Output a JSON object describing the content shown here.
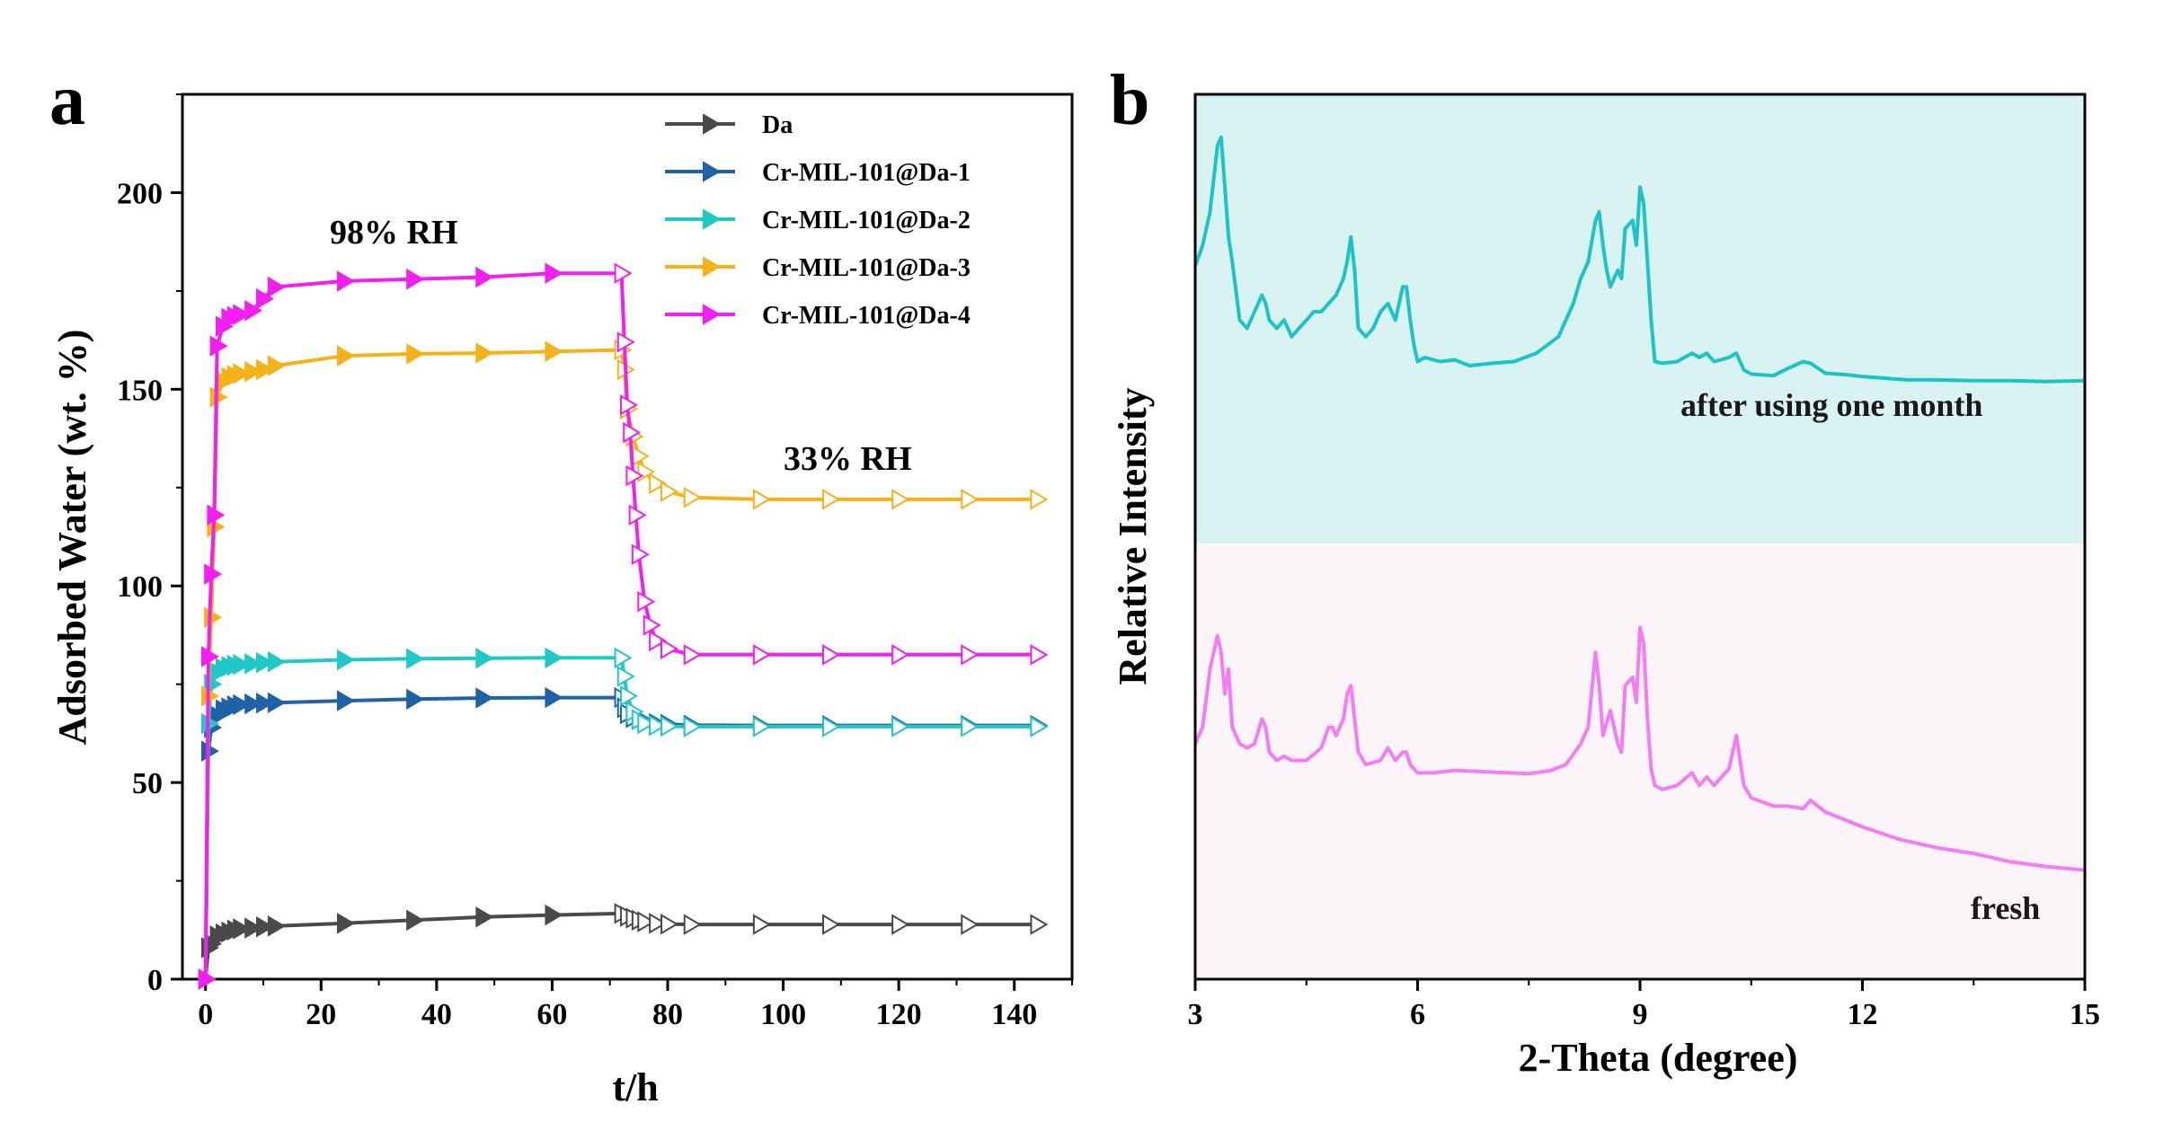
{
  "colors": {
    "Da": "#4a4a4a",
    "Cr-MIL-101@Da-1": "#1f63a6",
    "Cr-MIL-101@Da-2": "#20c8c8",
    "Cr-MIL-101@Da-3": "#f5b319",
    "Cr-MIL-101@Da-4": "#f21ef2",
    "trace_after": "#1ec3c3",
    "trace_fresh": "#f57cf5",
    "bg_after": "#d9f2f2",
    "bg_fresh": "#fbf4f8"
  },
  "chart_data": [
    {
      "panel": "a",
      "type": "line",
      "xlabel": "t/h",
      "ylabel": "Adsorbed Water (wt. %)",
      "xlim": [
        -4,
        150
      ],
      "ylim": [
        0,
        225
      ],
      "xticks": [
        "0",
        "20",
        "40",
        "60",
        "80",
        "100",
        "120",
        "140"
      ],
      "yticks": [
        "0",
        "50",
        "100",
        "150",
        "200"
      ],
      "annotations": [
        "98% RH",
        "33% RH"
      ],
      "legend_position": "top-right",
      "series": [
        {
          "name": "Da",
          "x": [
            0,
            0.5,
            1,
            2,
            3,
            4,
            5,
            6,
            8,
            10,
            12,
            24,
            36,
            48,
            60,
            72,
            73,
            74,
            75,
            76,
            78,
            80,
            84,
            96,
            108,
            120,
            132,
            144
          ],
          "values": [
            0,
            8,
            9,
            11,
            11.5,
            12,
            12.5,
            12.8,
            13,
            13.3,
            13.5,
            14.2,
            15,
            15.8,
            16.3,
            16.7,
            16,
            15.5,
            15,
            14.6,
            14.2,
            14,
            13.9,
            13.9,
            13.9,
            13.9,
            13.9,
            13.9
          ]
        },
        {
          "name": "Cr-MIL-101@Da-1",
          "x": [
            0,
            0.5,
            1,
            2,
            3,
            4,
            5,
            6,
            8,
            10,
            12,
            24,
            36,
            48,
            60,
            72,
            72.5,
            73,
            74,
            75,
            76,
            78,
            80,
            84,
            96,
            108,
            120,
            132,
            144
          ],
          "values": [
            0,
            58,
            64,
            67,
            68.5,
            69,
            69.5,
            69.8,
            70,
            70.2,
            70.3,
            70.8,
            71.2,
            71.5,
            71.6,
            71.6,
            69,
            67.5,
            66.5,
            66,
            65.5,
            65,
            64.8,
            64.6,
            64.5,
            64.5,
            64.5,
            64.5,
            64.5
          ]
        },
        {
          "name": "Cr-MIL-101@Da-2",
          "x": [
            0,
            0.5,
            1,
            2,
            3,
            4,
            5,
            6,
            8,
            10,
            12,
            24,
            36,
            48,
            60,
            72,
            72.5,
            73,
            74,
            75,
            76,
            78,
            80,
            84,
            96,
            108,
            120,
            132,
            144
          ],
          "values": [
            0,
            65,
            75,
            78,
            79,
            79.5,
            79.8,
            80,
            80.2,
            80.5,
            80.7,
            81.2,
            81.5,
            81.6,
            81.7,
            81.7,
            77,
            72,
            68,
            66,
            65,
            64.5,
            64.3,
            64.2,
            64.2,
            64.2,
            64.2,
            64.2,
            64.2
          ]
        },
        {
          "name": "Cr-MIL-101@Da-3",
          "x": [
            0,
            0.5,
            1,
            1.5,
            2,
            3,
            4,
            5,
            6,
            8,
            10,
            12,
            24,
            36,
            48,
            60,
            72,
            72.5,
            73,
            74,
            75,
            76,
            78,
            80,
            84,
            96,
            108,
            120,
            132,
            144
          ],
          "values": [
            0,
            72,
            92,
            115,
            148,
            152,
            153,
            153.5,
            154,
            154.5,
            155,
            156,
            158.5,
            159,
            159.2,
            159.6,
            160,
            155,
            145,
            138,
            133,
            129,
            126,
            124,
            122.5,
            122,
            122,
            122,
            122,
            122
          ]
        },
        {
          "name": "Cr-MIL-101@Da-4",
          "x": [
            0,
            0.5,
            1,
            1.5,
            2,
            3,
            4,
            5,
            6,
            8,
            10,
            12,
            24,
            36,
            48,
            60,
            72,
            72.5,
            73,
            73.5,
            74,
            74.5,
            75,
            76,
            77,
            78,
            80,
            84,
            96,
            108,
            120,
            132,
            144
          ],
          "values": [
            0,
            82,
            103,
            118,
            161,
            166,
            168,
            168.5,
            169,
            170,
            173,
            176,
            177.5,
            178,
            178.5,
            179.5,
            179.5,
            162,
            146,
            139,
            128,
            118,
            108,
            96,
            90,
            86,
            84,
            82.5,
            82.5,
            82.5,
            82.5,
            82.5,
            82.5
          ]
        }
      ]
    },
    {
      "panel": "b",
      "type": "line",
      "xlabel": "2-Theta (degree)",
      "ylabel": "Relative Intensity",
      "xlim": [
        3,
        15
      ],
      "ylim": [
        0,
        100
      ],
      "xticks": [
        "3",
        "6",
        "9",
        "12",
        "15"
      ],
      "annotations": [
        "after using one month",
        "fresh"
      ],
      "series": [
        {
          "name": "after using one month",
          "x": [
            3,
            3.1,
            3.2,
            3.3,
            3.35,
            3.4,
            3.45,
            3.5,
            3.6,
            3.7,
            3.8,
            3.9,
            3.95,
            4.0,
            4.1,
            4.2,
            4.3,
            4.4,
            4.5,
            4.6,
            4.7,
            4.8,
            4.9,
            5.0,
            5.05,
            5.1,
            5.15,
            5.2,
            5.3,
            5.4,
            5.5,
            5.6,
            5.65,
            5.7,
            5.8,
            5.85,
            5.9,
            5.95,
            6.0,
            6.1,
            6.3,
            6.5,
            6.7,
            7.0,
            7.3,
            7.6,
            7.9,
            8.0,
            8.1,
            8.2,
            8.3,
            8.4,
            8.45,
            8.5,
            8.55,
            8.6,
            8.7,
            8.75,
            8.8,
            8.9,
            8.95,
            9.0,
            9.05,
            9.1,
            9.15,
            9.2,
            9.3,
            9.5,
            9.7,
            9.8,
            9.9,
            10.0,
            10.2,
            10.3,
            10.4,
            10.5,
            10.8,
            11.0,
            11.2,
            11.3,
            11.5,
            11.8,
            12.0,
            12.3,
            12.6,
            13.0,
            13.5,
            14.0,
            14.5,
            15.0
          ],
          "values": [
            81.5,
            84,
            88,
            96,
            97,
            91,
            85,
            82,
            75,
            74,
            76,
            78,
            77,
            75,
            74,
            75,
            73,
            74,
            75,
            76,
            76,
            77,
            78,
            80,
            82,
            85,
            81,
            74,
            73,
            74,
            76,
            77,
            76,
            75,
            79,
            79,
            75,
            72,
            70,
            70.5,
            70,
            70.2,
            69.5,
            69.8,
            70,
            71,
            73,
            75,
            77,
            80,
            82,
            87,
            88,
            84,
            81,
            79,
            81,
            80,
            86,
            87,
            84,
            91,
            89,
            82,
            75,
            70,
            69.8,
            70,
            71,
            70.5,
            71,
            70,
            70.5,
            71,
            69,
            68.5,
            68.3,
            69.2,
            70,
            69.8,
            68.6,
            68.4,
            68.2,
            68.0,
            67.8,
            67.8,
            67.7,
            67.7,
            67.6,
            67.7
          ]
        },
        {
          "name": "fresh",
          "x": [
            3,
            3.1,
            3.2,
            3.3,
            3.35,
            3.4,
            3.45,
            3.5,
            3.6,
            3.7,
            3.8,
            3.9,
            3.95,
            4.0,
            4.1,
            4.2,
            4.3,
            4.5,
            4.7,
            4.8,
            4.85,
            4.9,
            5.0,
            5.05,
            5.1,
            5.15,
            5.2,
            5.3,
            5.5,
            5.6,
            5.7,
            5.8,
            5.85,
            5.9,
            6.0,
            6.2,
            6.5,
            7.0,
            7.5,
            7.8,
            8.0,
            8.2,
            8.3,
            8.4,
            8.45,
            8.5,
            8.6,
            8.7,
            8.75,
            8.8,
            8.9,
            8.95,
            9.0,
            9.05,
            9.1,
            9.15,
            9.2,
            9.3,
            9.5,
            9.7,
            9.8,
            9.9,
            10.0,
            10.2,
            10.3,
            10.4,
            10.5,
            10.8,
            11.0,
            11.2,
            11.3,
            11.5,
            12.0,
            12.5,
            13.0,
            13.5,
            14.0,
            14.5,
            15.0
          ],
          "values": [
            24,
            26,
            33,
            37,
            35,
            30,
            33,
            26,
            24,
            23.5,
            24,
            27,
            26,
            23,
            22,
            22.5,
            22,
            22,
            23.5,
            26,
            26,
            25,
            27,
            30,
            31,
            27,
            23,
            21.5,
            22,
            23.5,
            22,
            23,
            23,
            21.5,
            20.5,
            20.5,
            20.8,
            20.6,
            20.4,
            20.8,
            21.5,
            24,
            26,
            35,
            31,
            25,
            28,
            24,
            23,
            31,
            32,
            29,
            38,
            36,
            27,
            21,
            19,
            18.5,
            19,
            20.5,
            19,
            20,
            19,
            21,
            25,
            19,
            17.5,
            16.5,
            16.5,
            16.2,
            17.2,
            15.8,
            14,
            12.5,
            11.5,
            10.8,
            9.8,
            9.2,
            8.8
          ]
        }
      ]
    }
  ]
}
